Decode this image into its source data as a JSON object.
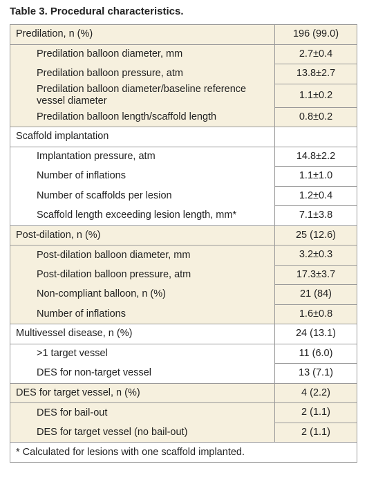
{
  "title": "Table 3. Procedural characteristics.",
  "table": {
    "groups": [
      {
        "header": {
          "label": "Predilation, n (%)",
          "value": "196 (99.0)"
        },
        "items": [
          [
            "Predilation balloon diameter, mm",
            "2.7±0.4"
          ],
          [
            "Predilation balloon pressure, atm",
            "13.8±2.7"
          ],
          [
            "Predilation balloon diameter/baseline reference vessel diameter",
            "1.1±0.2"
          ],
          [
            "Predilation balloon length/scaffold length",
            "0.8±0.2"
          ]
        ]
      },
      {
        "header": {
          "label": "Scaffold implantation"
        },
        "items": [
          [
            "Implantation pressure, atm",
            "14.8±2.2"
          ],
          [
            "Number of inflations",
            "1.1±1.0"
          ],
          [
            "Number of scaffolds per lesion",
            "1.2±0.4"
          ],
          [
            "Scaffold length exceeding lesion length, mm*",
            "7.1±3.8"
          ]
        ]
      },
      {
        "header": {
          "label": "Post-dilation, n (%)",
          "value": "25 (12.6)"
        },
        "items": [
          [
            "Post-dilation balloon diameter, mm",
            "3.2±0.3"
          ],
          [
            "Post-dilation balloon pressure, atm",
            "17.3±3.7"
          ],
          [
            "Non-compliant balloon, n (%)",
            "21 (84)"
          ],
          [
            "Number of inflations",
            "1.6±0.8"
          ]
        ]
      },
      {
        "header": {
          "label": "Multivessel disease, n (%)",
          "value": "24 (13.1)"
        },
        "items": [
          [
            ">1 target vessel",
            "11 (6.0)"
          ],
          [
            "DES for non-target vessel",
            "13 (7.1)"
          ]
        ]
      },
      {
        "header": {
          "label": "DES for target vessel, n (%)",
          "value": "4 (2.2)"
        },
        "items": [
          [
            "DES for bail-out",
            "2 (1.1)"
          ],
          [
            "DES for target vessel (no bail-out)",
            "2 (1.1)"
          ]
        ]
      }
    ],
    "footnote": "* Calculated for lesions with one scaffold implanted."
  }
}
